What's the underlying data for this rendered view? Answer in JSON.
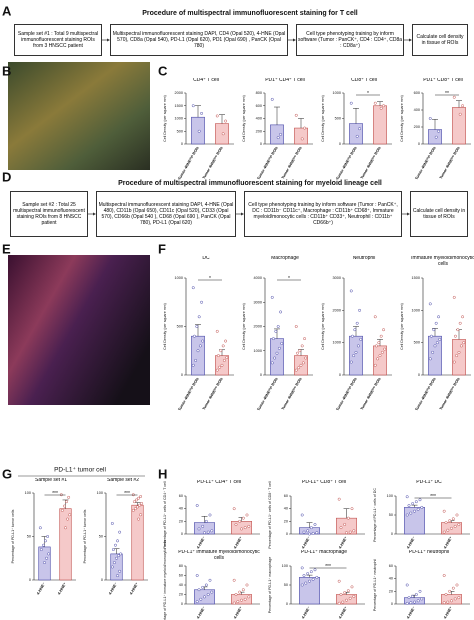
{
  "labels": [
    "A",
    "B",
    "C",
    "D",
    "E",
    "F",
    "G",
    "H"
  ],
  "flow_a": {
    "title": "Procedure of multispectral immunofluorescent staining for T cell",
    "boxes": [
      "Sample set #1 : Total 9 multispectral immunofluorescent staining ROIs from 3 HNSCC patient",
      "Multispectral immunofluorescent staining DAPI, CD4 (Opal 520), 4-HNE (Opal 570), CD8a (Opal 540), PD-L1 (Opal 620), PD1 (Opal 690) , PanCK (Opal 780)",
      "Cell type phenotyping training by inform software (Tumor : PanCK⁺, CD4 : CD4⁺, CD8a : CD8a⁺)",
      "Calculate cell density in tissue of ROIs"
    ]
  },
  "flow_d": {
    "title": "Procedure of multispectral immunofluorescent staining for myeloid lineage cell",
    "boxes": [
      "Sample set #2 : Total 25 multispectral immunofluorescent staining ROIs from 8 HNSCC patient",
      "Multispectral immunofluorescent staining DAPI, 4-HNE (Opal 480), CD11b (Opal 650), CD11c (Opal 520), CD33 (Opal 570), CD66b (Opal 540 ), CD68 (Opal 690 ), PanCK (Opal 780), PD-L1 (Opal 620)",
      "Cell type phenotyping training by inform software (Tumor : PanCK⁺, DC : CD11b⁻ CD11c⁺, Macrophage : CD11b⁺ CD68⁺, Immature myeloid/monocytic cells : CD11b⁺ CD33⁺, Neutrophil : CD11b⁺ CD66b⁺)",
      "Calculate cell density in tissue of ROIs"
    ]
  },
  "g_title": "PD-L1⁺ tumor cell",
  "chart_data": [
    {
      "type": "bar",
      "title": "CD4⁺ T cell",
      "ylabel": "Cell Density (per square mm)",
      "categories": [
        "Tumor 4HNEʰⁱᵍʰ ROIs",
        "Tumor 4HNEˡᵒʷ ROIs"
      ],
      "colors": [
        "#c8c5ea",
        "#f5c9c9"
      ],
      "edges": [
        "#4a4aa8",
        "#c0504d"
      ],
      "values": [
        1050,
        800
      ],
      "errors": [
        450,
        350
      ],
      "points": [
        [
          1500,
          1200,
          500
        ],
        [
          1100,
          900,
          400
        ]
      ],
      "ylim": [
        0,
        2000
      ],
      "yticks": [
        0,
        500,
        1000,
        1500,
        2000
      ]
    },
    {
      "type": "bar",
      "title": "PD1⁺ CD4⁺ T cell",
      "ylabel": "Cell Density (per square mm)",
      "categories": [
        "Tumor 4HNEʰⁱᵍʰ ROIs",
        "Tumor 4HNEˡᵒʷ ROIs"
      ],
      "colors": [
        "#c8c5ea",
        "#f5c9c9"
      ],
      "edges": [
        "#4a4aa8",
        "#c0504d"
      ],
      "values": [
        300,
        250
      ],
      "errors": [
        280,
        150
      ],
      "points": [
        [
          700,
          150,
          100
        ],
        [
          450,
          250,
          80
        ]
      ],
      "ylim": [
        0,
        800
      ],
      "yticks": [
        0,
        200,
        400,
        600,
        800
      ]
    },
    {
      "type": "bar",
      "title": "CD8⁺ T cell",
      "ylabel": "Cell Density (per square mm)",
      "categories": [
        "Tumor 4HNEʰⁱᵍʰ ROIs",
        "Tumor 4HNEˡᵒʷ ROIs"
      ],
      "colors": [
        "#c8c5ea",
        "#f5c9c9"
      ],
      "edges": [
        "#4a4aa8",
        "#c0504d"
      ],
      "values": [
        400,
        750
      ],
      "errors": [
        300,
        80
      ],
      "points": [
        [
          800,
          300,
          150
        ],
        [
          800,
          750,
          700
        ]
      ],
      "ylim": [
        0,
        1000
      ],
      "yticks": [
        0,
        500,
        1000
      ],
      "significance": "*"
    },
    {
      "type": "bar",
      "title": "PD1⁺ CD8⁺ T cell",
      "ylabel": "Cell Density (per square mm)",
      "categories": [
        "Tumor 4HNEʰⁱᵍʰ ROIs",
        "Tumor 4HNEˡᵒʷ ROIs"
      ],
      "colors": [
        "#c8c5ea",
        "#f5c9c9"
      ],
      "edges": [
        "#4a4aa8",
        "#c0504d"
      ],
      "values": [
        170,
        430
      ],
      "errors": [
        120,
        80
      ],
      "points": [
        [
          300,
          150,
          80
        ],
        [
          550,
          450,
          350
        ]
      ],
      "ylim": [
        0,
        600
      ],
      "yticks": [
        0,
        200,
        400,
        600
      ],
      "significance": "**"
    },
    {
      "type": "bar",
      "title": "DC",
      "ylabel": "Cell Density (per square mm)",
      "categories": [
        "Tumor 4HNEʰⁱᵍʰ ROIs",
        "Tumor 4HNEˡᵒʷ ROIs"
      ],
      "colors": [
        "#c8c5ea",
        "#f5c9c9"
      ],
      "edges": [
        "#4a4aa8",
        "#c0504d"
      ],
      "values": [
        400,
        200
      ],
      "errors": [
        120,
        60
      ],
      "points": [
        [
          900,
          750,
          600,
          500,
          400,
          350,
          300,
          250,
          150,
          100
        ],
        [
          450,
          350,
          300,
          250,
          200,
          180,
          150,
          100,
          80,
          50
        ]
      ],
      "ylim": [
        0,
        1000
      ],
      "yticks": [
        0,
        500,
        1000
      ],
      "significance": "*"
    },
    {
      "type": "bar",
      "title": "Macrophage",
      "ylabel": "Cell Density (per square mm)",
      "categories": [
        "Tumor 4HNEʰⁱᵍʰ ROIs",
        "Tumor 4HNEˡᵒʷ ROIs"
      ],
      "colors": [
        "#c8c5ea",
        "#f5c9c9"
      ],
      "edges": [
        "#4a4aa8",
        "#c0504d"
      ],
      "values": [
        1500,
        800
      ],
      "errors": [
        400,
        250
      ],
      "points": [
        [
          3200,
          2600,
          2000,
          1800,
          1500,
          1300,
          1100,
          900,
          700,
          500
        ],
        [
          2000,
          1500,
          1200,
          1000,
          900,
          700,
          500,
          400,
          300,
          200
        ]
      ],
      "ylim": [
        0,
        4000
      ],
      "yticks": [
        0,
        1000,
        2000,
        3000,
        4000
      ],
      "significance": "*"
    },
    {
      "type": "bar",
      "title": "Neutrophil",
      "ylabel": "Cell Density (per square mm)",
      "categories": [
        "Tumor 4HNEʰⁱᵍʰ ROIs",
        "Tumor 4HNEˡᵒʷ ROIs"
      ],
      "colors": [
        "#c8c5ea",
        "#f5c9c9"
      ],
      "edges": [
        "#4a4aa8",
        "#c0504d"
      ],
      "values": [
        1200,
        900
      ],
      "errors": [
        300,
        200
      ],
      "points": [
        [
          2600,
          2000,
          1600,
          1400,
          1200,
          1100,
          900,
          700,
          600,
          400
        ],
        [
          1800,
          1400,
          1200,
          1000,
          900,
          800,
          700,
          600,
          500,
          300
        ]
      ],
      "ylim": [
        0,
        3000
      ],
      "yticks": [
        0,
        1000,
        2000,
        3000
      ]
    },
    {
      "type": "bar",
      "title": "Immature myeloid/monocytic cells",
      "ylabel": "Cell Density (per square mm)",
      "categories": [
        "Tumor 4HNEʰⁱᵍʰ ROIs",
        "Tumor 4HNEˡᵒʷ ROIs"
      ],
      "colors": [
        "#c8c5ea",
        "#f5c9c9"
      ],
      "edges": [
        "#4a4aa8",
        "#c0504d"
      ],
      "values": [
        600,
        550
      ],
      "errors": [
        120,
        150
      ],
      "points": [
        [
          1100,
          900,
          800,
          700,
          600,
          550,
          500,
          450,
          350,
          250
        ],
        [
          1200,
          900,
          800,
          700,
          600,
          500,
          450,
          350,
          300,
          200
        ]
      ],
      "ylim": [
        0,
        1500
      ],
      "yticks": [
        0,
        500,
        1000,
        1500
      ]
    },
    {
      "type": "bar",
      "title": "Sample set #1",
      "ylabel": "Percentage of PD-L1⁺ tumor cells",
      "categories": [
        "4-HNE⁻",
        "4-HNE⁺"
      ],
      "colors": [
        "#c8c5ea",
        "#f5c9c9"
      ],
      "edges": [
        "#4a4aa8",
        "#c0504d"
      ],
      "values": [
        38,
        82
      ],
      "errors": [
        12,
        10
      ],
      "points": [
        [
          60,
          50,
          45,
          40,
          35,
          30,
          25,
          20
        ],
        [
          98,
          95,
          90,
          85,
          80,
          75,
          70,
          60
        ]
      ],
      "ylim": [
        0,
        100
      ],
      "yticks": [
        0,
        50,
        100
      ],
      "significance": "***"
    },
    {
      "type": "bar",
      "title": "Sample set #2",
      "ylabel": "Percentage of PD-L1⁺ tumor cells",
      "categories": [
        "4-HNE⁻",
        "4-HNE⁺"
      ],
      "colors": [
        "#c8c5ea",
        "#f5c9c9"
      ],
      "edges": [
        "#4a4aa8",
        "#c0504d"
      ],
      "values": [
        30,
        86
      ],
      "errors": [
        6,
        3
      ],
      "points": [
        [
          65,
          55,
          45,
          40,
          35,
          30,
          28,
          25,
          20,
          15,
          10,
          5
        ],
        [
          98,
          96,
          94,
          92,
          90,
          88,
          86,
          84,
          82,
          80,
          75,
          70
        ]
      ],
      "ylim": [
        0,
        100
      ],
      "yticks": [
        0,
        50,
        100
      ],
      "significance": "***"
    },
    {
      "type": "bar",
      "title": "PD-L1⁺ CD4⁺ T cell",
      "ylabel": "Percentage of PD-L1⁺ cells of CD4⁺ T cell",
      "categories": [
        "4-HNE⁻",
        "4-HNE⁺"
      ],
      "colors": [
        "#c8c5ea",
        "#f5c9c9"
      ],
      "edges": [
        "#4a4aa8",
        "#c0504d"
      ],
      "values": [
        18,
        20
      ],
      "errors": [
        10,
        6
      ],
      "points": [
        [
          45,
          30,
          20,
          12,
          8,
          5,
          3,
          2
        ],
        [
          40,
          30,
          25,
          20,
          15,
          12,
          10,
          8
        ]
      ],
      "ylim": [
        0,
        60
      ],
      "yticks": [
        0,
        20,
        40,
        60
      ]
    },
    {
      "type": "bar",
      "title": "PD-L1⁺ CD8⁺ T cell",
      "ylabel": "Percentage of PD-L1⁺ cells of CD8⁺ T cell",
      "categories": [
        "4-HNE⁻",
        "4-HNE⁺"
      ],
      "colors": [
        "#c8c5ea",
        "#f5c9c9"
      ],
      "edges": [
        "#4a4aa8",
        "#c0504d"
      ],
      "values": [
        10,
        25
      ],
      "errors": [
        8,
        15
      ],
      "points": [
        [
          30,
          15,
          10,
          5,
          3,
          2,
          1,
          0
        ],
        [
          55,
          40,
          25,
          15,
          10,
          5,
          3,
          2
        ]
      ],
      "ylim": [
        0,
        60
      ],
      "yticks": [
        0,
        20,
        40,
        60
      ]
    },
    {
      "type": "bar",
      "title": "PD-L1⁺ DC",
      "ylabel": "Percentage of PD-L1⁺ cells of DC",
      "categories": [
        "4-HNE⁻",
        "4-HNE⁺"
      ],
      "colors": [
        "#c8c5ea",
        "#f5c9c9"
      ],
      "edges": [
        "#4a4aa8",
        "#c0504d"
      ],
      "values": [
        70,
        30
      ],
      "errors": [
        6,
        5
      ],
      "points": [
        [
          98,
          90,
          85,
          80,
          75,
          70,
          65,
          60,
          55,
          50
        ],
        [
          60,
          50,
          40,
          35,
          30,
          25,
          20,
          15,
          10,
          5
        ]
      ],
      "ylim": [
        0,
        100
      ],
      "yticks": [
        0,
        50,
        100
      ],
      "significance": "***"
    },
    {
      "type": "bar",
      "title": "PD-L1⁺ immature myeloid/monocytic cells",
      "ylabel": "Percentage of PD-L1⁺ immature myeloid/monocytic cells",
      "categories": [
        "4-HNE⁻",
        "4-HNE⁺"
      ],
      "colors": [
        "#c8c5ea",
        "#f5c9c9"
      ],
      "edges": [
        "#4a4aa8",
        "#c0504d"
      ],
      "values": [
        30,
        20
      ],
      "errors": [
        6,
        5
      ],
      "points": [
        [
          60,
          50,
          40,
          35,
          30,
          25,
          20,
          15,
          10,
          5
        ],
        [
          50,
          40,
          30,
          25,
          20,
          15,
          10,
          8,
          5,
          2
        ]
      ],
      "ylim": [
        0,
        80
      ],
      "yticks": [
        0,
        20,
        40,
        60,
        80
      ]
    },
    {
      "type": "bar",
      "title": "PD-L1⁺ macrophage",
      "ylabel": "Percentage of PD-L1⁺ macrophage",
      "categories": [
        "4-HNE⁻",
        "4-HNE⁺"
      ],
      "colors": [
        "#c8c5ea",
        "#f5c9c9"
      ],
      "edges": [
        "#4a4aa8",
        "#c0504d"
      ],
      "values": [
        70,
        25
      ],
      "errors": [
        6,
        6
      ],
      "points": [
        [
          95,
          90,
          85,
          80,
          75,
          70,
          65,
          60,
          55,
          50
        ],
        [
          60,
          45,
          35,
          30,
          25,
          20,
          15,
          10,
          5,
          2
        ]
      ],
      "ylim": [
        0,
        100
      ],
      "yticks": [
        0,
        50,
        100
      ],
      "significance": "***"
    },
    {
      "type": "bar",
      "title": "PD-L1⁺ neutrophil",
      "ylabel": "Percentage of PD-L1⁺ neutrophil",
      "categories": [
        "4-HNE⁻",
        "4-HNE⁺"
      ],
      "colors": [
        "#c8c5ea",
        "#f5c9c9"
      ],
      "edges": [
        "#4a4aa8",
        "#c0504d"
      ],
      "values": [
        10,
        15
      ],
      "errors": [
        4,
        5
      ],
      "points": [
        [
          30,
          20,
          15,
          12,
          10,
          8,
          5,
          3,
          2,
          1
        ],
        [
          45,
          30,
          25,
          20,
          15,
          10,
          8,
          5,
          3,
          2
        ]
      ],
      "ylim": [
        0,
        60
      ],
      "yticks": [
        0,
        20,
        40,
        60
      ]
    }
  ]
}
